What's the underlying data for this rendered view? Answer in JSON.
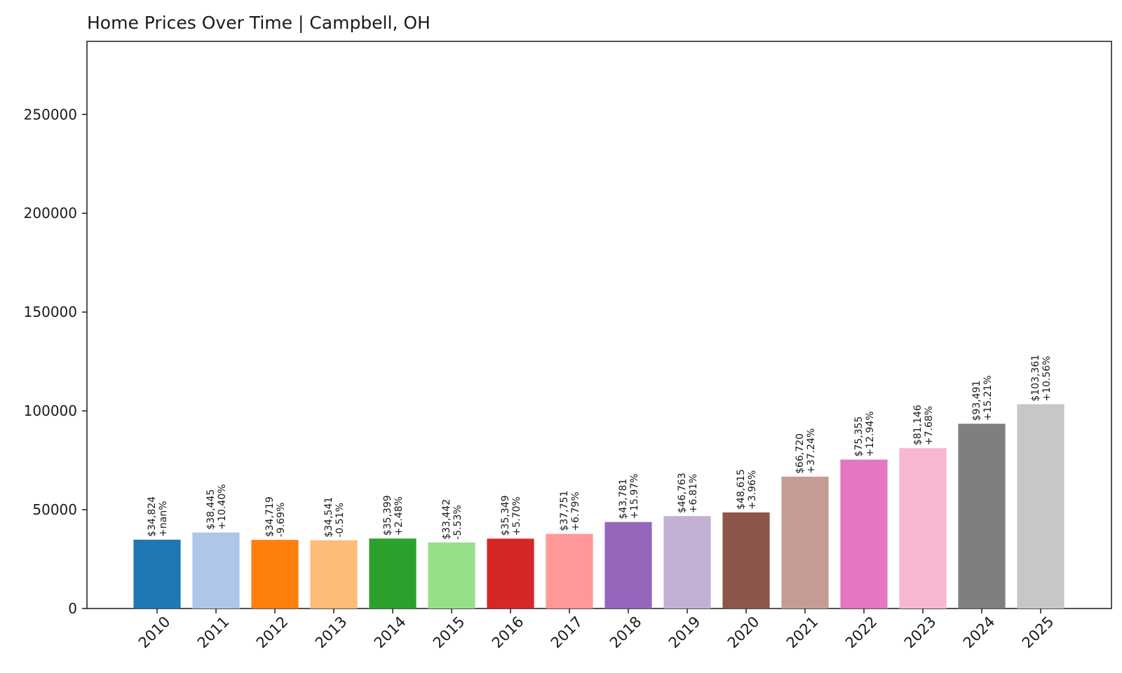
{
  "chart_data": {
    "type": "bar",
    "title": "Home Prices Over Time | Campbell, OH",
    "xlabel": "",
    "ylabel": "",
    "ylim": [
      0,
      287000
    ],
    "yticks": [
      0,
      50000,
      100000,
      150000,
      200000,
      250000
    ],
    "ytick_labels": [
      "0",
      "50000",
      "100000",
      "150000",
      "200000",
      "250000"
    ],
    "grid": false,
    "legend": "none",
    "categories": [
      "2010",
      "2011",
      "2012",
      "2013",
      "2014",
      "2015",
      "2016",
      "2017",
      "2018",
      "2019",
      "2020",
      "2021",
      "2022",
      "2023",
      "2024",
      "2025"
    ],
    "values": [
      34824,
      38445,
      34719,
      34541,
      35399,
      33442,
      35349,
      37751,
      43781,
      46763,
      48615,
      66720,
      75355,
      81146,
      93491,
      103361
    ],
    "price_labels": [
      "$34,824",
      "$38,445",
      "$34,719",
      "$34,541",
      "$35,399",
      "$33,442",
      "$35,349",
      "$37,751",
      "$43,781",
      "$46,763",
      "$48,615",
      "$66,720",
      "$75,355",
      "$81,146",
      "$93,491",
      "$103,361"
    ],
    "change_labels": [
      "+nan%",
      "+10.40%",
      "-9.69%",
      "-0.51%",
      "+2.48%",
      "-5.53%",
      "+5.70%",
      "+6.79%",
      "+15.97%",
      "+6.81%",
      "+3.96%",
      "+37.24%",
      "+12.94%",
      "+7.68%",
      "+15.21%",
      "+10.56%"
    ],
    "colors": [
      "#1f77b4",
      "#aec7e8",
      "#ff7f0e",
      "#ffbb78",
      "#2ca02c",
      "#98df8a",
      "#d62728",
      "#ff9896",
      "#9467bd",
      "#c5b0d5",
      "#8c564b",
      "#c49c94",
      "#e377c2",
      "#f7b6d2",
      "#7f7f7f",
      "#c7c7c7"
    ]
  }
}
